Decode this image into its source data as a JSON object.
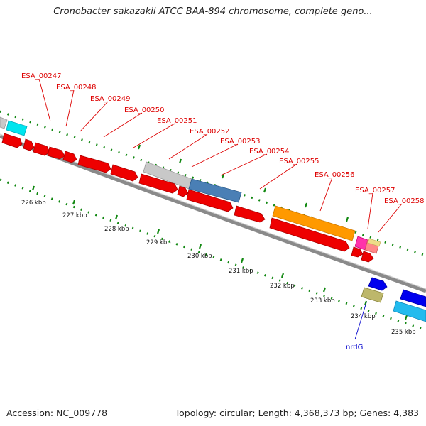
{
  "title": "Cronobacter sakazakii ATCC BAA-894 chromosome, complete geno...",
  "footer": {
    "accession": "Accession: NC_009778",
    "topology": "Topology: circular; Length: 4,368,373 bp; Genes: 4,383"
  },
  "colors": {
    "cds_red": "#ee0000",
    "backbone": "#8a8a8a",
    "tick_green": "#118811",
    "label_red": "#dd0000",
    "label_blue": "#0000cc"
  },
  "gene_labels": [
    {
      "text": "ESA_00247",
      "color": "red"
    },
    {
      "text": "ESA_00248",
      "color": "red"
    },
    {
      "text": "ESA_00249",
      "color": "red"
    },
    {
      "text": "ESA_00250",
      "color": "red"
    },
    {
      "text": "ESA_00251",
      "color": "red"
    },
    {
      "text": "ESA_00252",
      "color": "red"
    },
    {
      "text": "ESA_00253",
      "color": "red"
    },
    {
      "text": "ESA_00254",
      "color": "red"
    },
    {
      "text": "ESA_00255",
      "color": "red"
    },
    {
      "text": "ESA_00256",
      "color": "red"
    },
    {
      "text": "ESA_00257",
      "color": "red"
    },
    {
      "text": "ESA_00258",
      "color": "red"
    },
    {
      "text": "nrdG",
      "color": "blue"
    }
  ],
  "kbp_labels": [
    "226 kbp",
    "227 kbp",
    "228 kbp",
    "229 kbp",
    "230 kbp",
    "231 kbp",
    "232 kbp",
    "233 kbp",
    "234 kbp",
    "235 kbp"
  ]
}
